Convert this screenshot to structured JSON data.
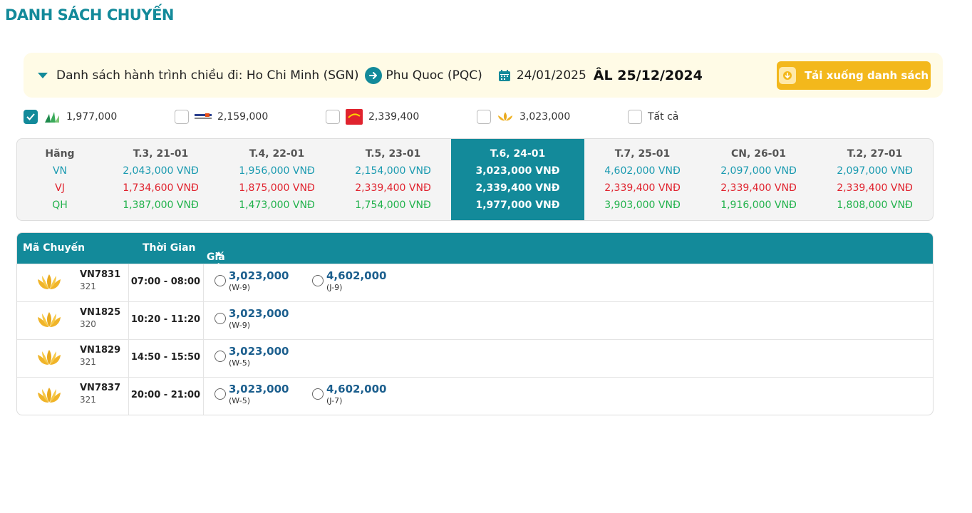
{
  "page_title": "DANH SÁCH CHUYẾN",
  "route": {
    "label": "Danh sách hành trình chiều đi:",
    "from": "Ho Chi Minh (SGN)",
    "to": "Phu Quoc (PQC)",
    "date": "24/01/2025",
    "lunar_date": "ÂL 25/12/2024",
    "download_label": "Tải xuống danh sách"
  },
  "filters": [
    {
      "airline_icon": "bamboo-airways-logo",
      "price": "1,977,000",
      "checked": true
    },
    {
      "airline_icon": "pacific-airlines-logo",
      "price": "2,159,000",
      "checked": false
    },
    {
      "airline_icon": "vietjet-logo",
      "price": "2,339,400",
      "checked": false
    },
    {
      "airline_icon": "vietnam-airlines-logo",
      "price": "3,023,000",
      "checked": false
    },
    {
      "label": "Tất cả",
      "checked": false
    }
  ],
  "price_grid": {
    "airline_header": "Hãng",
    "airlines": [
      "VN",
      "VJ",
      "QH"
    ],
    "days": [
      {
        "label": "T.3, 21-01",
        "VN": "2,043,000 VNĐ",
        "VJ": "1,734,600 VNĐ",
        "QH": "1,387,000 VNĐ",
        "active": false
      },
      {
        "label": "T.4, 22-01",
        "VN": "1,956,000 VNĐ",
        "VJ": "1,875,000 VNĐ",
        "QH": "1,473,000 VNĐ",
        "active": false
      },
      {
        "label": "T.5, 23-01",
        "VN": "2,154,000 VNĐ",
        "VJ": "2,339,400 VNĐ",
        "QH": "1,754,000 VNĐ",
        "active": false
      },
      {
        "label": "T.6, 24-01",
        "VN": "3,023,000 VNĐ",
        "VJ": "2,339,400 VNĐ",
        "QH": "1,977,000 VNĐ",
        "active": true
      },
      {
        "label": "T.7, 25-01",
        "VN": "4,602,000 VNĐ",
        "VJ": "2,339,400 VNĐ",
        "QH": "3,903,000 VNĐ",
        "active": false
      },
      {
        "label": "CN, 26-01",
        "VN": "2,097,000 VNĐ",
        "VJ": "2,339,400 VNĐ",
        "QH": "1,916,000 VNĐ",
        "active": false
      },
      {
        "label": "T.2, 27-01",
        "VN": "2,097,000 VNĐ",
        "VJ": "2,339,400 VNĐ",
        "QH": "1,808,000 VNĐ",
        "active": false
      }
    ]
  },
  "flights_table": {
    "headers": {
      "code": "Mã Chuyến",
      "time": "Thời Gian",
      "fare": "Giá Vé"
    },
    "rows": [
      {
        "code": "VN7831",
        "aircraft": "321",
        "time": "07:00 - 08:00",
        "fares": [
          {
            "price": "3,023,000",
            "class": "(W-9)"
          },
          {
            "price": "4,602,000",
            "class": "(J-9)"
          }
        ]
      },
      {
        "code": "VN1825",
        "aircraft": "320",
        "time": "10:20 - 11:20",
        "fares": [
          {
            "price": "3,023,000",
            "class": "(W-9)"
          }
        ]
      },
      {
        "code": "VN1829",
        "aircraft": "321",
        "time": "14:50 - 15:50",
        "fares": [
          {
            "price": "3,023,000",
            "class": "(W-5)"
          }
        ]
      },
      {
        "code": "VN7837",
        "aircraft": "321",
        "time": "20:00 - 21:00",
        "fares": [
          {
            "price": "3,023,000",
            "class": "(W-5)"
          },
          {
            "price": "4,602,000",
            "class": "(J-7)"
          }
        ]
      }
    ]
  },
  "colors": {
    "primary": "#138a9a",
    "accent": "#f3b81c",
    "vn": "#1a9ab0",
    "vj": "#e0232e",
    "qh": "#22b24c"
  }
}
